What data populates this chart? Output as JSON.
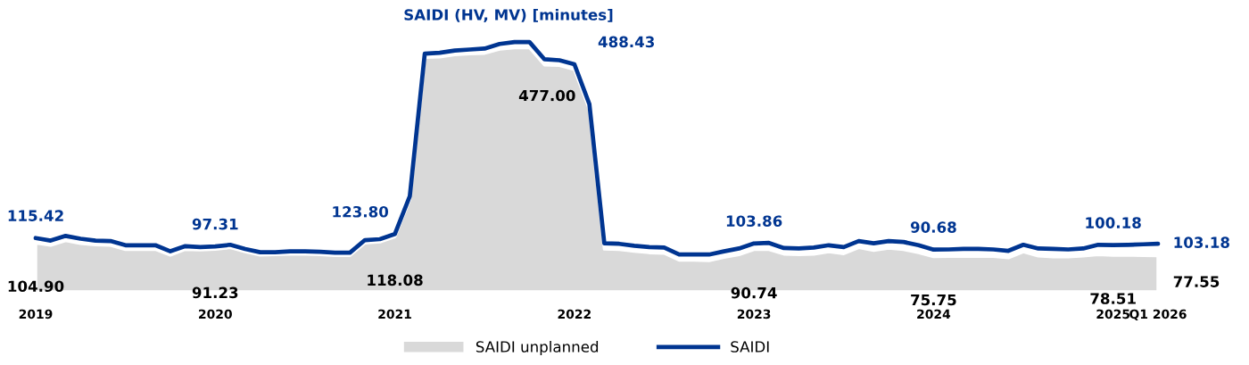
{
  "chart_data": {
    "type": "area",
    "title": "SAIDI (HV, MV) [minutes]",
    "categories": [
      "2019",
      null,
      null,
      null,
      null,
      null,
      null,
      null,
      null,
      null,
      null,
      null,
      "2020",
      null,
      null,
      null,
      null,
      null,
      null,
      null,
      null,
      null,
      null,
      null,
      "2021",
      null,
      null,
      null,
      null,
      null,
      null,
      null,
      null,
      null,
      null,
      null,
      "2022",
      null,
      null,
      null,
      null,
      null,
      null,
      null,
      null,
      null,
      null,
      null,
      "2023",
      null,
      null,
      null,
      null,
      null,
      null,
      null,
      null,
      null,
      null,
      null,
      "2024",
      null,
      null,
      null,
      null,
      null,
      null,
      null,
      null,
      null,
      null,
      null,
      "2025",
      null,
      null,
      "Q1 2026"
    ],
    "series": [
      {
        "name": "SAIDI unplanned",
        "color": "#d9d9d9",
        "values": [
          104.9,
          100,
          110,
          104,
          101,
          100,
          91,
          91,
          91,
          79,
          91,
          90,
          91.23,
          95,
          86,
          79,
          80,
          81,
          81,
          80,
          78,
          78,
          105,
          107,
          118.08,
          198,
          503,
          504,
          509,
          511,
          512,
          521,
          524,
          524,
          487,
          486,
          477.0,
          392,
          92,
          91,
          87,
          84,
          83,
          68,
          68,
          67,
          74,
          80,
          90.74,
          91,
          81,
          80,
          81,
          86,
          82,
          95,
          89,
          94,
          91,
          84,
          75.75,
          76,
          76,
          76,
          76,
          73,
          86,
          77,
          75,
          75,
          77,
          80,
          78.51,
          79,
          78,
          77.55
        ],
        "value_labels": [
          "104.90",
          null,
          null,
          null,
          null,
          null,
          null,
          null,
          null,
          null,
          null,
          null,
          "91.23",
          null,
          null,
          null,
          null,
          null,
          null,
          null,
          null,
          null,
          null,
          null,
          "118.08",
          null,
          null,
          null,
          null,
          null,
          null,
          null,
          null,
          null,
          null,
          null,
          "477.00",
          null,
          null,
          null,
          null,
          null,
          null,
          null,
          null,
          null,
          null,
          null,
          "90.74",
          null,
          null,
          null,
          null,
          null,
          null,
          null,
          null,
          null,
          null,
          null,
          "75.75",
          null,
          null,
          null,
          null,
          null,
          null,
          null,
          null,
          null,
          null,
          null,
          "78.51",
          null,
          null,
          "77.55"
        ]
      },
      {
        "name": "SAIDI",
        "type": "line",
        "color": "#003591",
        "values": [
          115.42,
          110,
          120,
          114,
          110,
          109,
          100,
          100,
          100,
          87,
          98,
          96,
          97.31,
          101,
          92,
          85,
          85,
          87,
          87,
          86,
          84,
          84,
          111,
          113,
          123.8,
          205,
          511,
          513,
          518,
          520,
          522,
          532,
          536,
          536,
          499,
          497,
          488.43,
          403,
          104,
          103,
          99,
          96,
          95,
          80,
          80,
          80,
          87,
          93,
          103.86,
          105,
          94,
          93,
          95,
          100,
          96,
          109,
          104,
          109,
          107,
          100,
          90.68,
          91,
          92,
          92,
          91,
          88,
          101,
          93,
          92,
          91,
          93,
          101,
          100.18,
          101,
          102,
          103.18
        ],
        "value_labels": [
          "115.42",
          null,
          null,
          null,
          null,
          null,
          null,
          null,
          null,
          null,
          null,
          null,
          "97.31",
          null,
          null,
          null,
          null,
          null,
          null,
          null,
          null,
          null,
          null,
          null,
          "123.80",
          null,
          null,
          null,
          null,
          null,
          null,
          null,
          null,
          null,
          null,
          null,
          "488.43",
          null,
          null,
          null,
          null,
          null,
          null,
          null,
          null,
          null,
          null,
          null,
          "103.86",
          null,
          null,
          null,
          null,
          null,
          null,
          null,
          null,
          null,
          null,
          null,
          "90.68",
          null,
          null,
          null,
          null,
          null,
          null,
          null,
          null,
          null,
          null,
          null,
          "100.18",
          null,
          null,
          "103.18"
        ]
      }
    ],
    "legend": "bottom",
    "grid": false
  }
}
